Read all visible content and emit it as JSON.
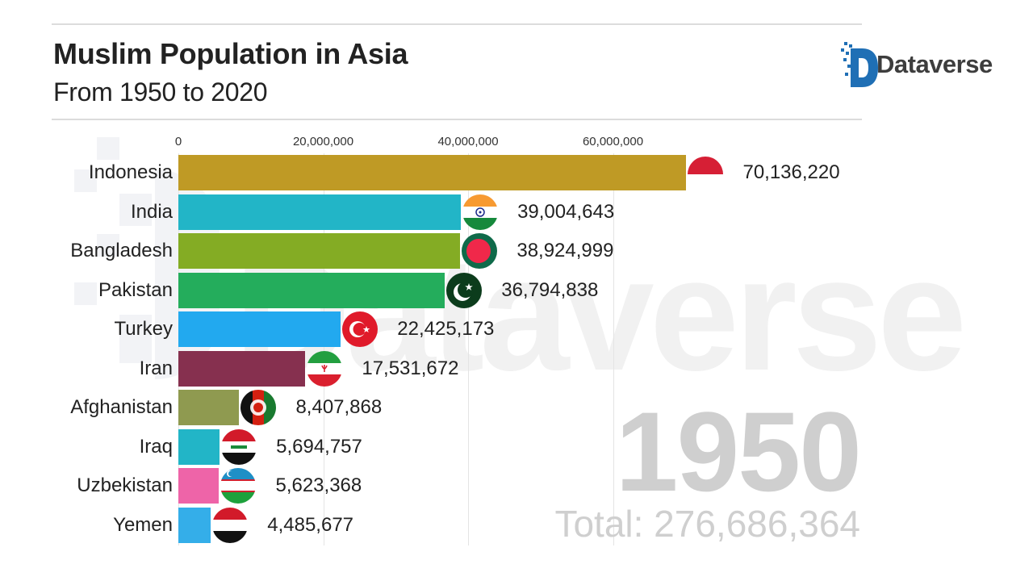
{
  "header": {
    "title": "Muslim Population in Asia",
    "subtitle": "From 1950 to 2020"
  },
  "logo": {
    "text": "Dataverse",
    "color": "#1f6fb5"
  },
  "watermark": "Dataverse",
  "overlay": {
    "year": "1950",
    "total": "Total: 276,686,364"
  },
  "chart_data": {
    "type": "bar",
    "orientation": "horizontal",
    "title": "Muslim Population in Asia",
    "subtitle": "From 1950 to 2020",
    "year": 1950,
    "total": 276686364,
    "xlabel": "",
    "ylabel": "",
    "x_ticks": [
      "0",
      "20,000,000",
      "40,000,000",
      "60,000,000"
    ],
    "xlim": [
      0,
      78000000
    ],
    "grid": true,
    "categories": [
      "Indonesia",
      "India",
      "Bangladesh",
      "Pakistan",
      "Turkey",
      "Iran",
      "Afghanistan",
      "Iraq",
      "Uzbekistan",
      "Yemen"
    ],
    "values": [
      70136220,
      39004643,
      38924999,
      36794838,
      22425173,
      17531672,
      8407868,
      5694757,
      5623368,
      4485677
    ],
    "value_labels": [
      "70,136,220",
      "39,004,643",
      "38,924,999",
      "36,794,838",
      "22,425,173",
      "17,531,672",
      "8,407,868",
      "5,694,757",
      "5,623,368",
      "4,485,677"
    ],
    "colors": [
      "#bf9a25",
      "#22b5c7",
      "#84ac24",
      "#24ad5c",
      "#22a9ef",
      "#86304f",
      "#8f9a50",
      "#22b5c7",
      "#ee64a8",
      "#34aee9"
    ]
  }
}
